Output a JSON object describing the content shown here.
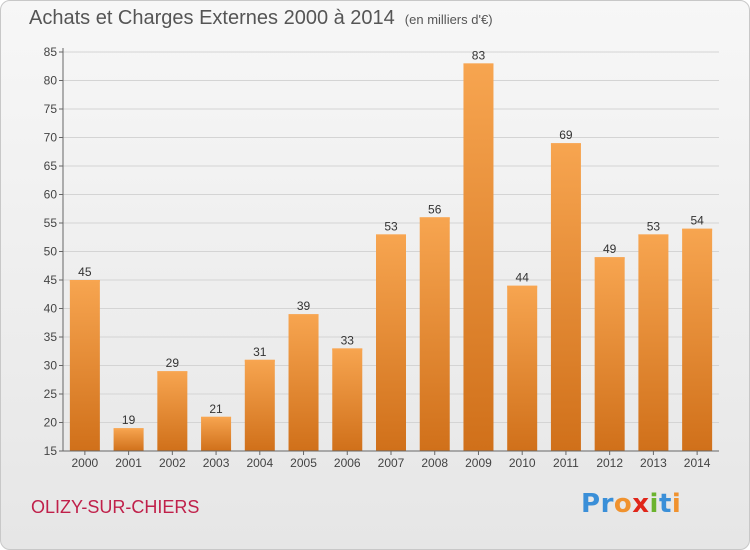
{
  "header": {
    "title": "Achats et Charges Externes 2000 à 2014",
    "unit": "(en milliers d'€)"
  },
  "footer": {
    "city": "OLIZY-SUR-CHIERS",
    "logo_letters": [
      "P",
      "r",
      "o",
      "x",
      "i",
      "t",
      "i"
    ]
  },
  "colors": {
    "bar": "#f0922e",
    "bar_light": "#f7a550",
    "bar_dark": "#d0701a",
    "city": "#c0204a",
    "logo": [
      "#3a8fd8",
      "#3a8fd8",
      "#f0922e",
      "#e0261a",
      "#6bb32e",
      "#3a8fd8",
      "#f0922e"
    ]
  },
  "chart_data": {
    "type": "bar",
    "categories": [
      "2000",
      "2001",
      "2002",
      "2003",
      "2004",
      "2005",
      "2006",
      "2007",
      "2008",
      "2009",
      "2010",
      "2011",
      "2012",
      "2013",
      "2014"
    ],
    "values": [
      45,
      19,
      29,
      21,
      31,
      39,
      33,
      53,
      56,
      83,
      44,
      69,
      49,
      53,
      54
    ],
    "data_labels": [
      "45",
      "19",
      "29",
      "21",
      "31",
      "39",
      "33",
      "53",
      "56",
      "83",
      "44",
      "69",
      "49",
      "53",
      "54"
    ],
    "title": "Achats et Charges Externes 2000 à 2014",
    "xlabel": "",
    "ylabel": "",
    "ylim": [
      15,
      85
    ],
    "yticks": [
      15,
      20,
      25,
      30,
      35,
      40,
      45,
      50,
      55,
      60,
      65,
      70,
      75,
      80,
      85
    ],
    "grid": true
  }
}
